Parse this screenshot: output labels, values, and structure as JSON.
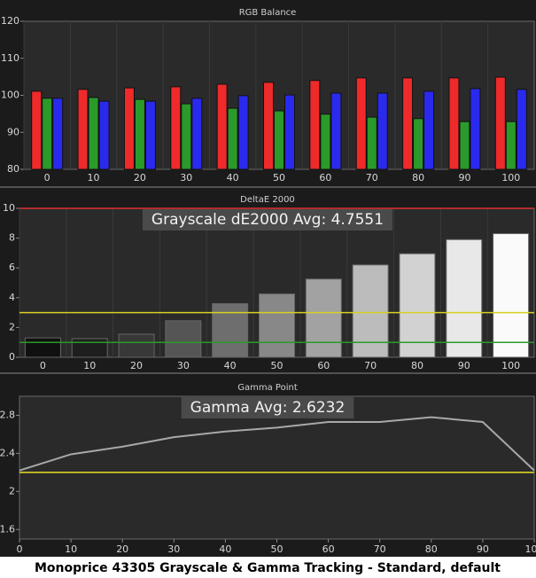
{
  "chart_data": [
    {
      "type": "bar",
      "title": "RGB Balance",
      "categories": [
        "0",
        "10",
        "20",
        "30",
        "40",
        "50",
        "60",
        "70",
        "80",
        "90",
        "100"
      ],
      "series": [
        {
          "name": "Red",
          "color": "#ee2a2a",
          "values": [
            101.1,
            101.6,
            102.0,
            102.3,
            103.0,
            103.5,
            104.0,
            104.7,
            104.7,
            104.7,
            104.9
          ]
        },
        {
          "name": "Green",
          "color": "#2a9a2a",
          "values": [
            99.2,
            99.4,
            98.9,
            97.7,
            96.5,
            95.8,
            94.9,
            94.1,
            93.7,
            92.9,
            92.9
          ]
        },
        {
          "name": "Blue",
          "color": "#2a2aee",
          "values": [
            99.2,
            98.4,
            98.4,
            99.2,
            99.9,
            100.1,
            100.6,
            100.6,
            101.1,
            101.8,
            101.6
          ]
        }
      ],
      "ylim": [
        80,
        120
      ],
      "yticks": [
        80,
        90,
        100,
        110,
        120
      ]
    },
    {
      "type": "bar",
      "title": "DeltaE 2000",
      "annotation": "Grayscale dE2000 Avg: 4.7551",
      "categories": [
        "0",
        "10",
        "20",
        "30",
        "40",
        "50",
        "60",
        "70",
        "80",
        "90",
        "100"
      ],
      "values": [
        1.3,
        1.25,
        1.55,
        2.45,
        3.6,
        4.25,
        5.25,
        6.2,
        6.95,
        7.9,
        8.3
      ],
      "colors": [
        "#101010",
        "#1e1e1e",
        "#383838",
        "#555555",
        "#6e6e6e",
        "#888888",
        "#a2a2a2",
        "#bcbcbc",
        "#d2d2d2",
        "#e8e8e8",
        "#fafafa"
      ],
      "reference_lines": [
        {
          "value": 10,
          "color": "#e03030"
        },
        {
          "value": 3,
          "color": "#d8d020"
        },
        {
          "value": 1,
          "color": "#2a9a2a"
        }
      ],
      "ylim": [
        0,
        10
      ],
      "yticks": [
        0,
        2,
        4,
        6,
        8,
        10
      ]
    },
    {
      "type": "line",
      "title": "Gamma Point",
      "annotation": "Gamma Avg: 2.6232",
      "x": [
        0,
        10,
        20,
        30,
        40,
        50,
        60,
        70,
        80,
        90,
        100
      ],
      "values": [
        2.22,
        2.39,
        2.47,
        2.57,
        2.63,
        2.67,
        2.73,
        2.73,
        2.78,
        2.73,
        2.22
      ],
      "color": "#a8a8a8",
      "reference_lines": [
        {
          "value": 2.2,
          "color": "#e8e020"
        }
      ],
      "xlim": [
        0,
        100
      ],
      "xticks": [
        0,
        10,
        20,
        30,
        40,
        50,
        60,
        70,
        80,
        90,
        100
      ],
      "ylim": [
        1.5,
        3.0
      ],
      "yticks": [
        1.6,
        2,
        2.4,
        2.8
      ]
    }
  ],
  "caption": "Monoprice 43305 Grayscale & Gamma Tracking - Standard, default"
}
